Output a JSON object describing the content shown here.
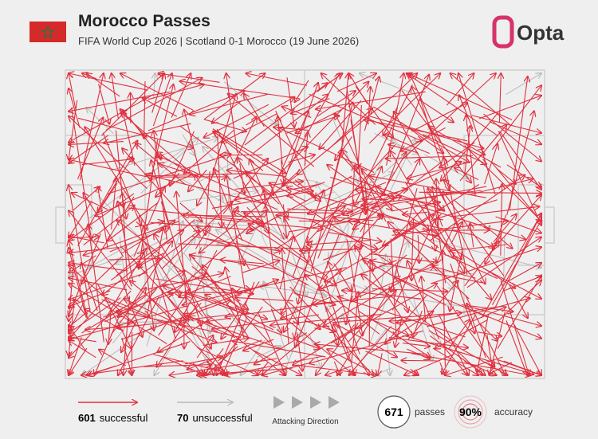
{
  "header": {
    "title": "Morocco Passes",
    "subtitle": "FIFA World Cup 2026 | Scotland 0-1 Morocco (19 June 2026)",
    "brand": "Opta"
  },
  "legend": {
    "successful": {
      "count": 601,
      "label": "successful"
    },
    "unsuccessful": {
      "count": 70,
      "label": "unsuccessful"
    },
    "direction": "Attacking Direction"
  },
  "stats": {
    "passes": {
      "count": 671,
      "label": "passes"
    },
    "accuracy": {
      "text": "90%",
      "label": "accuracy"
    }
  }
}
